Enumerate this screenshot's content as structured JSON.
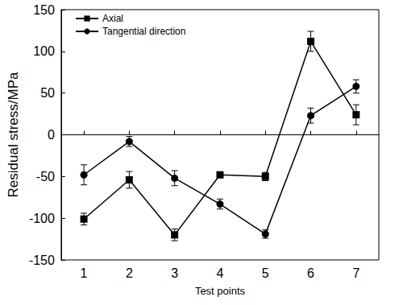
{
  "chart_data": {
    "type": "line",
    "x_label": "Test points",
    "y_label": "Residual stress/MPa",
    "categories": [
      "1",
      "2",
      "3",
      "4",
      "5",
      "6",
      "7"
    ],
    "series": [
      {
        "name": "Axial",
        "color": "#000000",
        "marker": "square",
        "values": [
          -101,
          -54,
          -120,
          -48,
          -50,
          112,
          24
        ],
        "errors": [
          7,
          10,
          7,
          2,
          5,
          12,
          12
        ]
      },
      {
        "name": "Tangential direction",
        "color": "#000000",
        "marker": "circle",
        "values": [
          -48,
          -8,
          -52,
          -83,
          -119,
          23,
          58
        ],
        "errors": [
          12,
          6,
          9,
          6,
          5,
          9,
          8
        ]
      }
    ],
    "ylim": [
      -150,
      150
    ],
    "yticks": [
      -150,
      -100,
      -50,
      0,
      50,
      100,
      150
    ],
    "grid": false,
    "legend": "upper left"
  }
}
